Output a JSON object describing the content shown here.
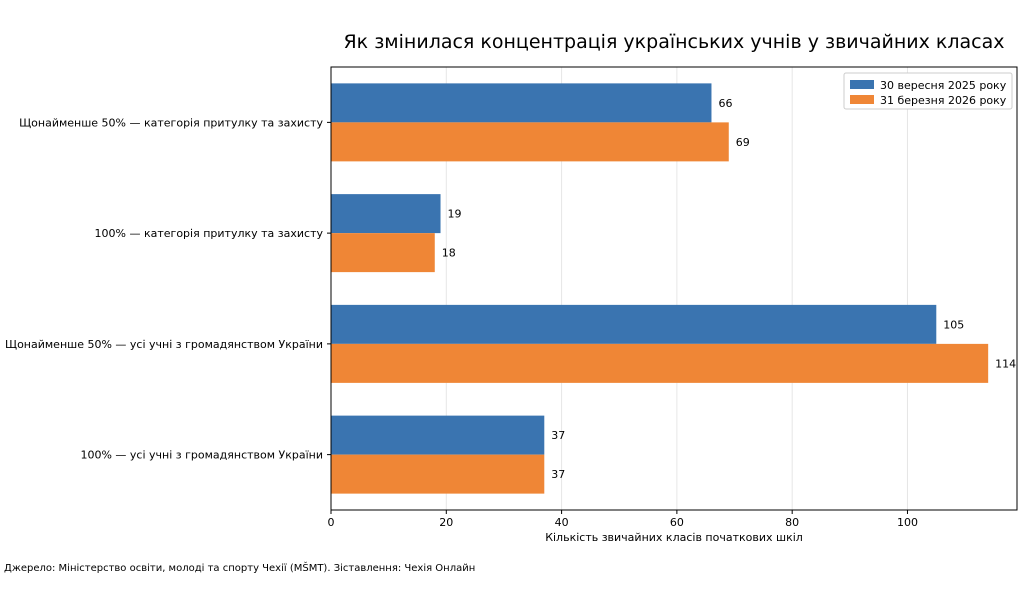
{
  "chart_data": {
    "type": "bar",
    "orientation": "horizontal",
    "title": "Як змінилася концентрація українських учнів у звичайних класах",
    "xlabel": "Кількість звичайних класів початкових шкіл",
    "ylabel": "",
    "xlim": [
      0,
      119
    ],
    "x_ticks": [
      0,
      20,
      40,
      60,
      80,
      100
    ],
    "grid": "x",
    "legend_position": "top-right",
    "categories": [
      "Щонайменше 50% — категорія притулку та захисту",
      "100% — категорія притулку та захисту",
      "Щонайменше 50% — усі учні з громадянством України",
      "100% — усі учні з громадянством України"
    ],
    "series": [
      {
        "name": "30 вересня 2025 року",
        "color": "#3a74b0",
        "values": [
          66,
          19,
          105,
          37
        ]
      },
      {
        "name": "31 березня 2026 року",
        "color": "#ef8636",
        "values": [
          69,
          18,
          114,
          37
        ]
      }
    ],
    "data_labels": true
  },
  "footer": {
    "source": "Джерело: Міністерство освіти, молоді та спорту Чехії (MŠMT). Зіставлення: Чехія Онлайн"
  }
}
